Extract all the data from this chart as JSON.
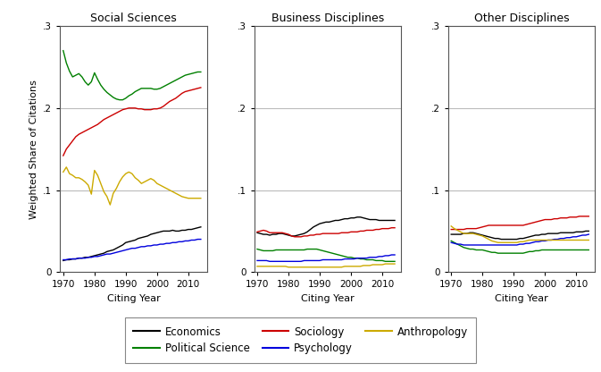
{
  "titles": [
    "Social Sciences",
    "Business Disciplines",
    "Other Disciplines"
  ],
  "xlabel": "Citing Year",
  "ylabel": "Weighted Share of Citations",
  "ylim": [
    0,
    0.3
  ],
  "yticks": [
    0,
    0.1,
    0.2,
    0.3
  ],
  "yticklabels": [
    "0",
    ".1",
    ".2",
    ".3"
  ],
  "years": [
    1970,
    1971,
    1972,
    1973,
    1974,
    1975,
    1976,
    1977,
    1978,
    1979,
    1980,
    1981,
    1982,
    1983,
    1984,
    1985,
    1986,
    1987,
    1988,
    1989,
    1990,
    1991,
    1992,
    1993,
    1994,
    1995,
    1996,
    1997,
    1998,
    1999,
    2000,
    2001,
    2002,
    2003,
    2004,
    2005,
    2006,
    2007,
    2008,
    2009,
    2010,
    2011,
    2012,
    2013,
    2014
  ],
  "series": {
    "Economics": {
      "color": "#000000",
      "panel0": [
        0.014,
        0.015,
        0.015,
        0.016,
        0.016,
        0.017,
        0.017,
        0.018,
        0.018,
        0.019,
        0.02,
        0.021,
        0.022,
        0.023,
        0.025,
        0.026,
        0.027,
        0.029,
        0.031,
        0.033,
        0.036,
        0.037,
        0.038,
        0.039,
        0.041,
        0.042,
        0.043,
        0.044,
        0.046,
        0.047,
        0.048,
        0.049,
        0.05,
        0.05,
        0.05,
        0.051,
        0.05,
        0.05,
        0.051,
        0.051,
        0.052,
        0.052,
        0.053,
        0.054,
        0.055
      ],
      "panel1": [
        0.048,
        0.047,
        0.046,
        0.046,
        0.045,
        0.046,
        0.046,
        0.047,
        0.047,
        0.046,
        0.045,
        0.044,
        0.044,
        0.045,
        0.046,
        0.047,
        0.049,
        0.052,
        0.055,
        0.057,
        0.059,
        0.06,
        0.061,
        0.061,
        0.062,
        0.063,
        0.063,
        0.064,
        0.065,
        0.065,
        0.066,
        0.066,
        0.067,
        0.067,
        0.066,
        0.065,
        0.064,
        0.064,
        0.064,
        0.063,
        0.063,
        0.063,
        0.063,
        0.063,
        0.063
      ],
      "panel2": [
        0.046,
        0.046,
        0.046,
        0.046,
        0.047,
        0.047,
        0.048,
        0.048,
        0.047,
        0.046,
        0.045,
        0.044,
        0.043,
        0.042,
        0.041,
        0.041,
        0.04,
        0.04,
        0.04,
        0.04,
        0.04,
        0.04,
        0.041,
        0.041,
        0.042,
        0.043,
        0.044,
        0.045,
        0.045,
        0.046,
        0.046,
        0.047,
        0.047,
        0.047,
        0.047,
        0.048,
        0.048,
        0.048,
        0.048,
        0.048,
        0.049,
        0.049,
        0.049,
        0.05,
        0.05
      ]
    },
    "Political Science": {
      "color": "#008000",
      "panel0": [
        0.27,
        0.255,
        0.245,
        0.238,
        0.24,
        0.242,
        0.238,
        0.232,
        0.228,
        0.232,
        0.243,
        0.235,
        0.228,
        0.223,
        0.219,
        0.216,
        0.213,
        0.211,
        0.21,
        0.21,
        0.212,
        0.215,
        0.217,
        0.22,
        0.222,
        0.224,
        0.224,
        0.224,
        0.224,
        0.223,
        0.223,
        0.224,
        0.226,
        0.228,
        0.23,
        0.232,
        0.234,
        0.236,
        0.238,
        0.24,
        0.241,
        0.242,
        0.243,
        0.244,
        0.244
      ],
      "panel1": [
        0.028,
        0.027,
        0.026,
        0.026,
        0.026,
        0.026,
        0.027,
        0.027,
        0.027,
        0.027,
        0.027,
        0.027,
        0.027,
        0.027,
        0.027,
        0.027,
        0.028,
        0.028,
        0.028,
        0.028,
        0.027,
        0.026,
        0.025,
        0.024,
        0.023,
        0.022,
        0.021,
        0.02,
        0.019,
        0.018,
        0.018,
        0.017,
        0.017,
        0.016,
        0.016,
        0.015,
        0.015,
        0.015,
        0.014,
        0.014,
        0.014,
        0.013,
        0.013,
        0.013,
        0.013
      ],
      "panel2": [
        0.038,
        0.036,
        0.034,
        0.032,
        0.03,
        0.029,
        0.028,
        0.028,
        0.027,
        0.027,
        0.027,
        0.026,
        0.025,
        0.024,
        0.024,
        0.023,
        0.023,
        0.023,
        0.023,
        0.023,
        0.023,
        0.023,
        0.023,
        0.023,
        0.024,
        0.025,
        0.025,
        0.026,
        0.026,
        0.027,
        0.027,
        0.027,
        0.027,
        0.027,
        0.027,
        0.027,
        0.027,
        0.027,
        0.027,
        0.027,
        0.027,
        0.027,
        0.027,
        0.027,
        0.027
      ]
    },
    "Sociology": {
      "color": "#cc0000",
      "panel0": [
        0.142,
        0.15,
        0.155,
        0.16,
        0.165,
        0.168,
        0.17,
        0.172,
        0.174,
        0.176,
        0.178,
        0.18,
        0.183,
        0.186,
        0.188,
        0.19,
        0.192,
        0.194,
        0.196,
        0.198,
        0.199,
        0.2,
        0.2,
        0.2,
        0.199,
        0.199,
        0.198,
        0.198,
        0.198,
        0.199,
        0.199,
        0.2,
        0.202,
        0.205,
        0.208,
        0.21,
        0.212,
        0.215,
        0.218,
        0.22,
        0.221,
        0.222,
        0.223,
        0.224,
        0.225
      ],
      "panel1": [
        0.049,
        0.05,
        0.051,
        0.05,
        0.048,
        0.048,
        0.048,
        0.048,
        0.048,
        0.047,
        0.046,
        0.044,
        0.043,
        0.043,
        0.043,
        0.044,
        0.044,
        0.045,
        0.045,
        0.046,
        0.046,
        0.047,
        0.047,
        0.047,
        0.047,
        0.047,
        0.047,
        0.048,
        0.048,
        0.048,
        0.049,
        0.049,
        0.049,
        0.05,
        0.05,
        0.051,
        0.051,
        0.051,
        0.052,
        0.052,
        0.053,
        0.053,
        0.053,
        0.054,
        0.054
      ],
      "panel2": [
        0.052,
        0.052,
        0.052,
        0.052,
        0.052,
        0.053,
        0.053,
        0.053,
        0.053,
        0.054,
        0.055,
        0.056,
        0.057,
        0.057,
        0.057,
        0.057,
        0.057,
        0.057,
        0.057,
        0.057,
        0.057,
        0.057,
        0.057,
        0.057,
        0.058,
        0.059,
        0.06,
        0.061,
        0.062,
        0.063,
        0.064,
        0.064,
        0.064,
        0.065,
        0.065,
        0.066,
        0.066,
        0.066,
        0.067,
        0.067,
        0.067,
        0.068,
        0.068,
        0.068,
        0.068
      ]
    },
    "Psychology": {
      "color": "#0000dd",
      "panel0": [
        0.015,
        0.015,
        0.016,
        0.016,
        0.016,
        0.017,
        0.017,
        0.017,
        0.018,
        0.018,
        0.019,
        0.019,
        0.02,
        0.021,
        0.022,
        0.022,
        0.023,
        0.024,
        0.025,
        0.026,
        0.027,
        0.028,
        0.029,
        0.029,
        0.03,
        0.031,
        0.031,
        0.032,
        0.032,
        0.033,
        0.033,
        0.034,
        0.034,
        0.035,
        0.035,
        0.036,
        0.036,
        0.037,
        0.037,
        0.038,
        0.038,
        0.039,
        0.039,
        0.04,
        0.04
      ],
      "panel1": [
        0.014,
        0.014,
        0.014,
        0.014,
        0.013,
        0.013,
        0.013,
        0.013,
        0.013,
        0.013,
        0.013,
        0.013,
        0.013,
        0.013,
        0.013,
        0.014,
        0.014,
        0.014,
        0.014,
        0.014,
        0.014,
        0.015,
        0.015,
        0.015,
        0.015,
        0.015,
        0.015,
        0.015,
        0.016,
        0.016,
        0.016,
        0.016,
        0.017,
        0.017,
        0.017,
        0.017,
        0.018,
        0.018,
        0.018,
        0.019,
        0.019,
        0.02,
        0.02,
        0.021,
        0.021
      ],
      "panel2": [
        0.036,
        0.035,
        0.034,
        0.034,
        0.033,
        0.033,
        0.033,
        0.033,
        0.033,
        0.033,
        0.033,
        0.033,
        0.033,
        0.033,
        0.033,
        0.033,
        0.033,
        0.033,
        0.033,
        0.033,
        0.033,
        0.033,
        0.034,
        0.034,
        0.035,
        0.035,
        0.036,
        0.037,
        0.037,
        0.038,
        0.038,
        0.039,
        0.039,
        0.04,
        0.04,
        0.041,
        0.041,
        0.042,
        0.042,
        0.043,
        0.043,
        0.044,
        0.045,
        0.045,
        0.046
      ]
    },
    "Anthropology": {
      "color": "#ccaa00",
      "panel0": [
        0.122,
        0.128,
        0.12,
        0.118,
        0.115,
        0.115,
        0.113,
        0.11,
        0.106,
        0.095,
        0.124,
        0.118,
        0.108,
        0.098,
        0.092,
        0.082,
        0.096,
        0.102,
        0.11,
        0.116,
        0.12,
        0.122,
        0.12,
        0.115,
        0.112,
        0.108,
        0.11,
        0.112,
        0.114,
        0.112,
        0.108,
        0.106,
        0.104,
        0.102,
        0.1,
        0.098,
        0.096,
        0.094,
        0.092,
        0.091,
        0.09,
        0.09,
        0.09,
        0.09,
        0.09
      ],
      "panel1": [
        0.007,
        0.007,
        0.007,
        0.007,
        0.007,
        0.007,
        0.007,
        0.007,
        0.007,
        0.007,
        0.006,
        0.006,
        0.006,
        0.006,
        0.006,
        0.006,
        0.006,
        0.006,
        0.006,
        0.006,
        0.006,
        0.006,
        0.006,
        0.006,
        0.006,
        0.006,
        0.006,
        0.006,
        0.007,
        0.007,
        0.007,
        0.007,
        0.007,
        0.007,
        0.008,
        0.008,
        0.008,
        0.009,
        0.009,
        0.009,
        0.009,
        0.01,
        0.01,
        0.01,
        0.01
      ],
      "panel2": [
        0.056,
        0.053,
        0.051,
        0.049,
        0.047,
        0.047,
        0.047,
        0.047,
        0.046,
        0.045,
        0.044,
        0.042,
        0.04,
        0.038,
        0.037,
        0.036,
        0.036,
        0.036,
        0.036,
        0.036,
        0.036,
        0.036,
        0.037,
        0.037,
        0.038,
        0.039,
        0.039,
        0.039,
        0.039,
        0.039,
        0.039,
        0.039,
        0.039,
        0.039,
        0.039,
        0.039,
        0.039,
        0.039,
        0.039,
        0.039,
        0.039,
        0.039,
        0.039,
        0.039,
        0.039
      ]
    }
  },
  "legend_order": [
    "Economics",
    "Political Science",
    "Sociology",
    "Psychology",
    "Anthropology"
  ],
  "xticks": [
    1970,
    1980,
    1990,
    2000,
    2010
  ],
  "xticklabels": [
    "1970",
    "1980",
    "1990",
    "2000",
    "2010"
  ],
  "background_color": "#ffffff",
  "grid_color": "#bbbbbb"
}
